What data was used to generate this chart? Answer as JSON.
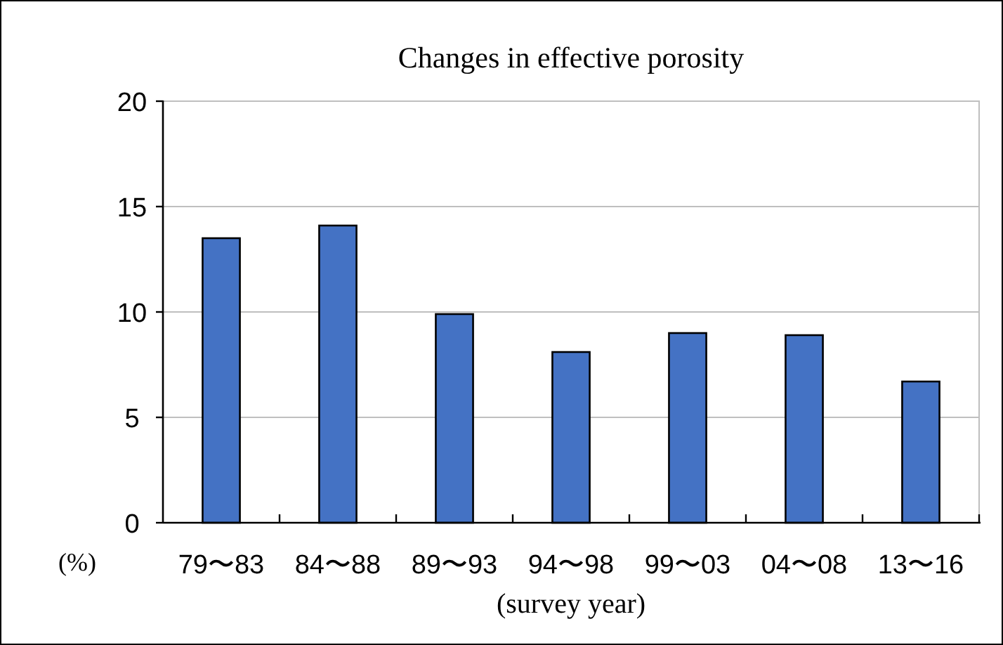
{
  "chart_data": {
    "type": "bar",
    "title": "Changes in effective porosity",
    "categories": [
      "79〜83",
      "84〜88",
      "89〜93",
      "94〜98",
      "99〜03",
      "04〜08",
      "13〜16"
    ],
    "values": [
      13.5,
      14.1,
      9.9,
      8.1,
      9.0,
      8.9,
      6.7
    ],
    "color": "#4472c4",
    "ylabel": "(%)",
    "xlabel": "(survey year)",
    "ylim": [
      0,
      20
    ],
    "yticks": [
      0,
      5,
      10,
      15,
      20
    ],
    "grid": "y"
  }
}
